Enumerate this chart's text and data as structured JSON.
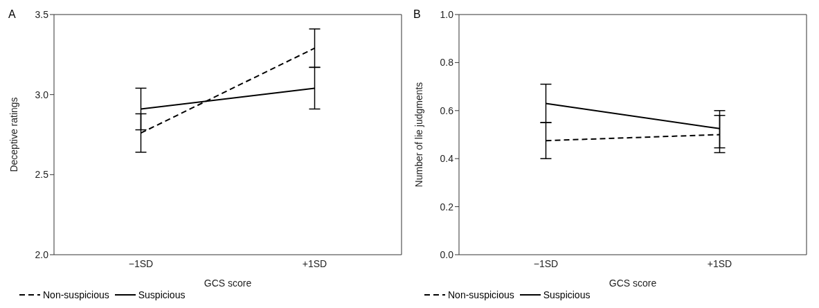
{
  "chart_data": [
    {
      "type": "line",
      "title": "A",
      "xlabel": "GCS score",
      "ylabel": "Deceptive ratings",
      "categories": [
        "−1SD",
        "+1SD"
      ],
      "ylim": [
        2.0,
        3.5
      ],
      "yticks": [
        {
          "value": 2,
          "label": "2.0"
        },
        2.5,
        {
          "value": 3,
          "label": "3.0"
        },
        3.5
      ],
      "legend": "bottom",
      "marker": "none",
      "grid": false,
      "series": [
        {
          "name": "Non-suspicious",
          "color": "#000000",
          "line_style": "dashed",
          "values": [
            2.76,
            3.29
          ],
          "errors": [
            [
              2.64,
              2.88
            ],
            [
              3.17,
              3.41
            ]
          ]
        },
        {
          "name": "Suspicious",
          "color": "#000000",
          "line_style": "solid",
          "values": [
            2.91,
            3.04
          ],
          "errors": [
            [
              2.78,
              3.04
            ],
            [
              2.91,
              3.17
            ]
          ]
        }
      ]
    },
    {
      "type": "line",
      "title": "B",
      "xlabel": "GCS score",
      "ylabel": "Number of lie judgments",
      "categories": [
        "−1SD",
        "+1SD"
      ],
      "ylim": [
        0.0,
        1.0
      ],
      "yticks": [
        {
          "value": 0,
          "label": "0.0"
        },
        0.2,
        0.4,
        0.6,
        0.8,
        {
          "value": 1,
          "label": "1.0"
        }
      ],
      "legend": "bottom",
      "marker": "none",
      "grid": false,
      "series": [
        {
          "name": "Non-suspicious",
          "color": "#000000",
          "line_style": "dashed",
          "values": [
            0.475,
            0.5
          ],
          "errors": [
            [
              0.4,
              0.55
            ],
            [
              0.425,
              0.58
            ]
          ]
        },
        {
          "name": "Suspicious",
          "color": "#000000",
          "line_style": "solid",
          "values": [
            0.63,
            0.525
          ],
          "errors": [
            [
              0.55,
              0.71
            ],
            [
              0.445,
              0.6
            ]
          ]
        }
      ]
    }
  ]
}
